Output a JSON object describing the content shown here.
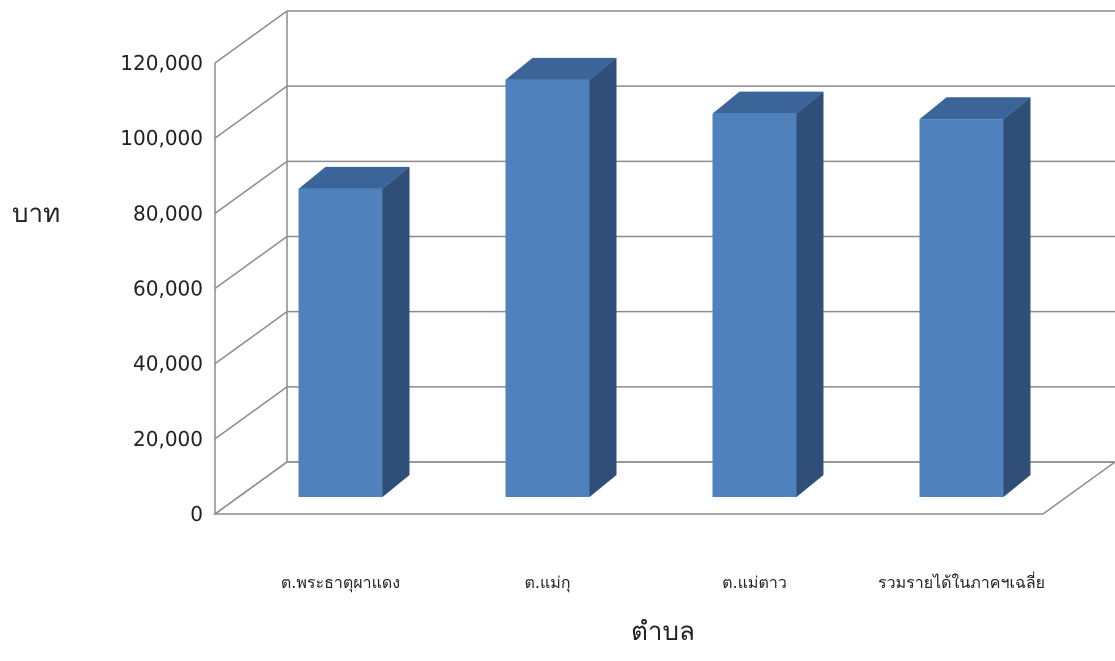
{
  "chart_data": {
    "type": "bar",
    "style": "3d-column",
    "xlabel": "ตำบล",
    "ylabel": "บาท",
    "categories": [
      "ต.พระธาตุผาแดง",
      "ต.แม่กุ",
      "ต.แม่ตาว",
      "รวมรายได้ในภาคฯเฉลี่ย"
    ],
    "values": [
      82000,
      111000,
      102000,
      100500
    ],
    "ylim": [
      0,
      120000
    ],
    "yticks": [
      "0",
      "20,000",
      "40,000",
      "60,000",
      "80,000",
      "100,000",
      "120,000"
    ],
    "grid": true,
    "legend": "none",
    "colors": {
      "bar_front": "#4F81BD",
      "bar_side": "#2F4F78",
      "bar_top": "#3B6598",
      "grid": "#8C8C8C"
    }
  }
}
